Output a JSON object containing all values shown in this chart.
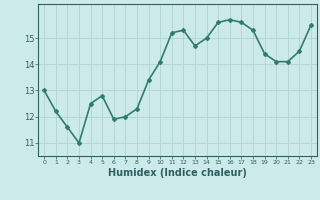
{
  "x": [
    0,
    1,
    2,
    3,
    4,
    5,
    6,
    7,
    8,
    9,
    10,
    11,
    12,
    13,
    14,
    15,
    16,
    17,
    18,
    19,
    20,
    21,
    22,
    23
  ],
  "y": [
    13.0,
    12.2,
    11.6,
    11.0,
    12.5,
    12.8,
    11.9,
    12.0,
    12.3,
    13.4,
    14.1,
    15.2,
    15.3,
    14.7,
    15.0,
    15.6,
    15.7,
    15.6,
    15.3,
    14.4,
    14.1,
    14.1,
    14.5,
    15.5
  ],
  "line_color": "#2e7d6e",
  "marker": "D",
  "marker_size": 2,
  "bg_color": "#cdeaea",
  "grid_color": "#b0d4d0",
  "tick_color": "#2e6060",
  "xlabel": "Humidex (Indice chaleur)",
  "xlabel_fontsize": 7,
  "ylim": [
    10.5,
    16.3
  ],
  "yticks": [
    11,
    12,
    13,
    14,
    15
  ],
  "xticks": [
    0,
    1,
    2,
    3,
    4,
    5,
    6,
    7,
    8,
    9,
    10,
    11,
    12,
    13,
    14,
    15,
    16,
    17,
    18,
    19,
    20,
    21,
    22,
    23
  ],
  "line_width": 1.2
}
